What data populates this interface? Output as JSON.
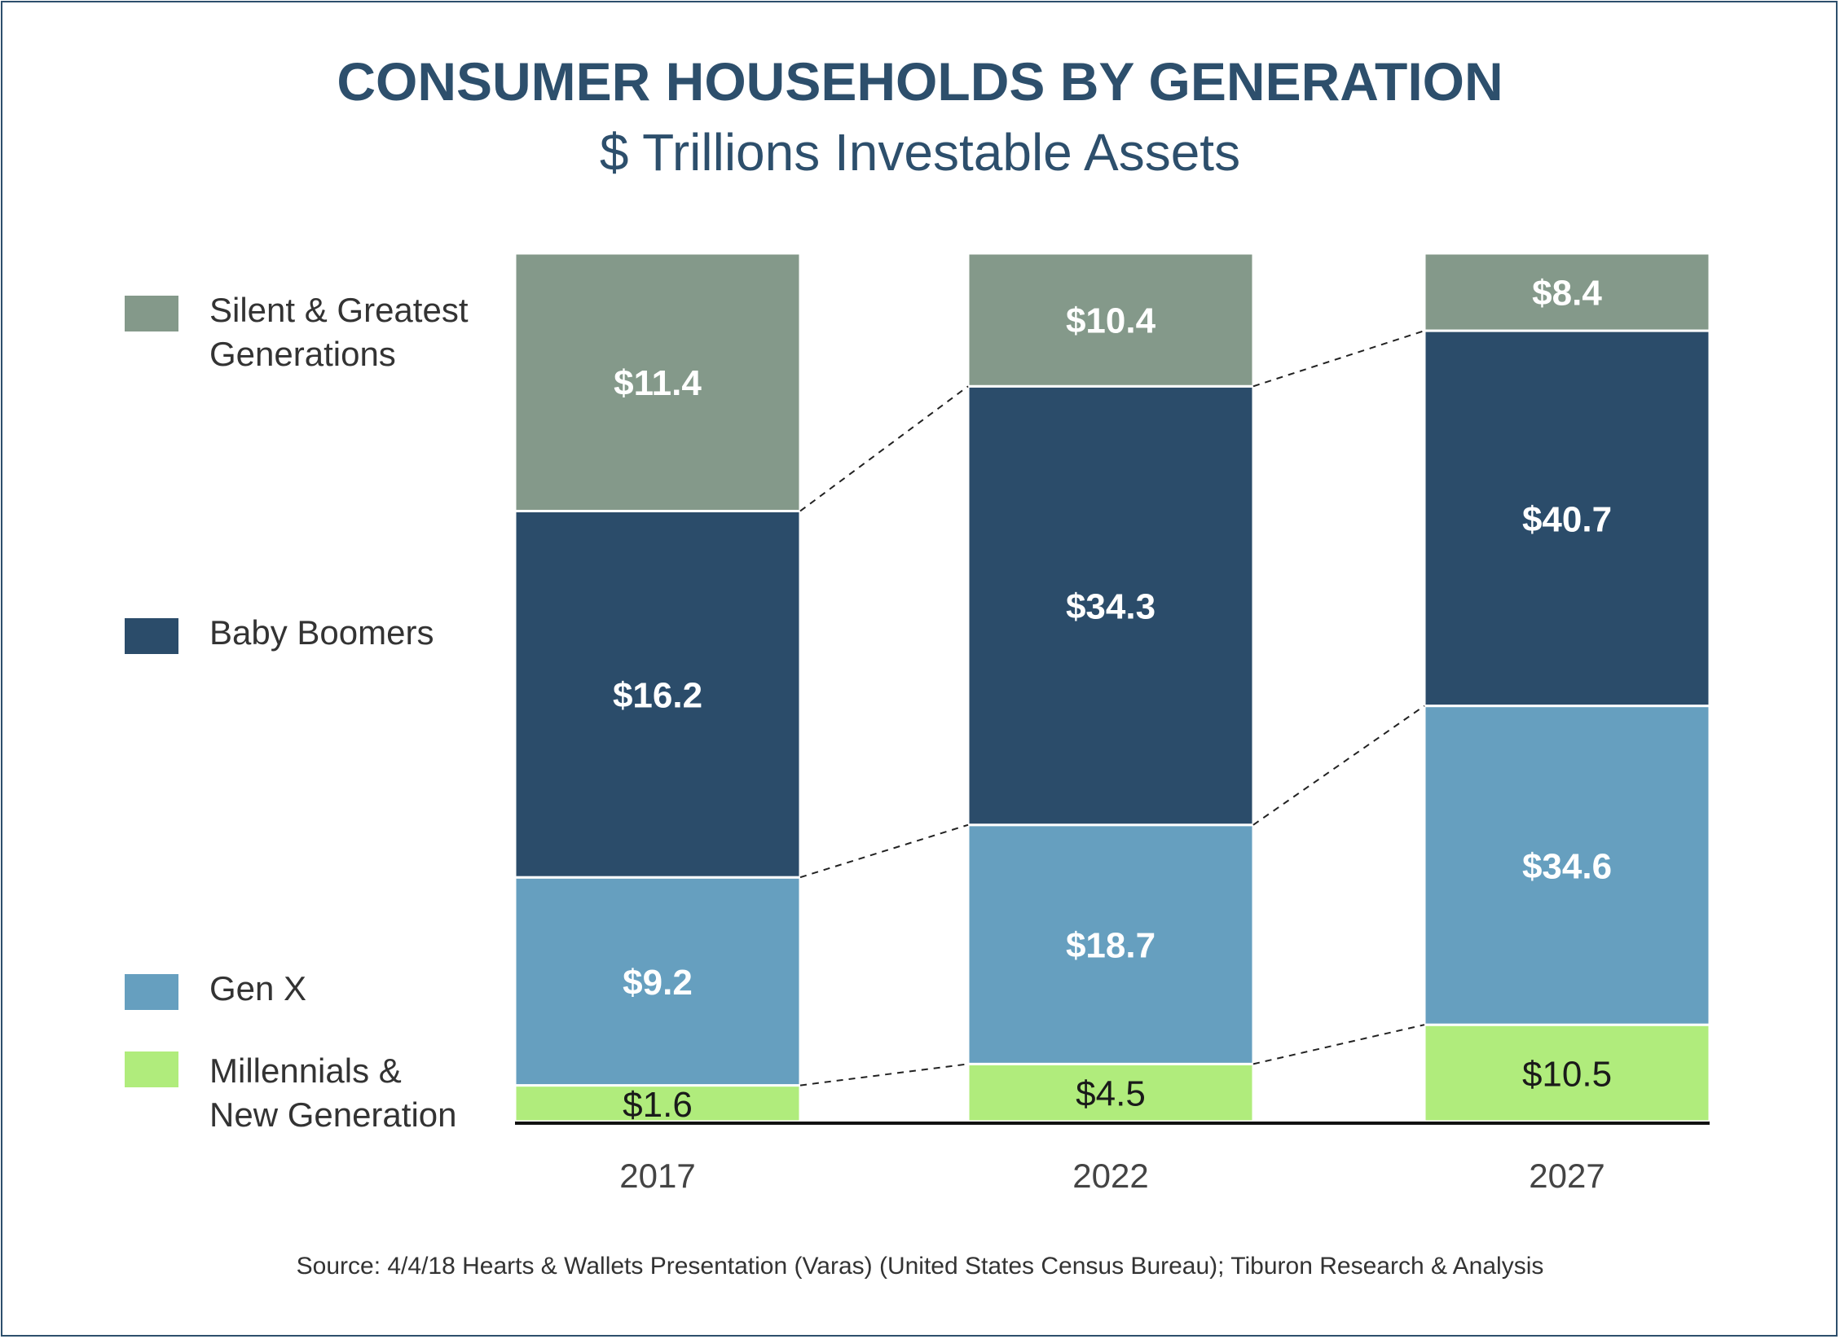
{
  "chart_data": {
    "type": "bar",
    "stacked": true,
    "title": "CONSUMER HOUSEHOLDS BY GENERATION",
    "subtitle": "$ Trillions Investable Assets",
    "categories": [
      "2017",
      "2022",
      "2027"
    ],
    "series": [
      {
        "name": "Millennials & New Generation",
        "values": [
          1.6,
          4.5,
          10.5
        ],
        "labels": [
          "$1.6",
          "$4.5",
          "$10.5"
        ],
        "color": "#b0ec7c",
        "label_color": "#1a1a1a"
      },
      {
        "name": "Gen X",
        "values": [
          9.2,
          18.7,
          34.6
        ],
        "labels": [
          "$9.2",
          "$18.7",
          "$34.6"
        ],
        "color": "#669fbf",
        "label_color": "#ffffff"
      },
      {
        "name": "Baby Boomers",
        "values": [
          16.2,
          34.3,
          40.7
        ],
        "labels": [
          "$16.2",
          "$34.3",
          "$40.7"
        ],
        "color": "#2b4c6a",
        "label_color": "#ffffff"
      },
      {
        "name": "Silent & Greatest Generations",
        "values": [
          11.4,
          10.4,
          8.4
        ],
        "labels": [
          "$11.4",
          "$10.4",
          "$8.4"
        ],
        "color": "#84998a",
        "label_color": "#ffffff"
      }
    ],
    "legend_order": [
      "Silent & Greatest Generations",
      "Baby Boomers",
      "Gen X",
      "Millennials & New Generation"
    ],
    "legend_position": "left",
    "xlabel": "",
    "ylabel": ""
  },
  "source": "Source: 4/4/18 Hearts & Wallets Presentation (Varas) (United States Census Bureau); Tiburon Research & Analysis"
}
